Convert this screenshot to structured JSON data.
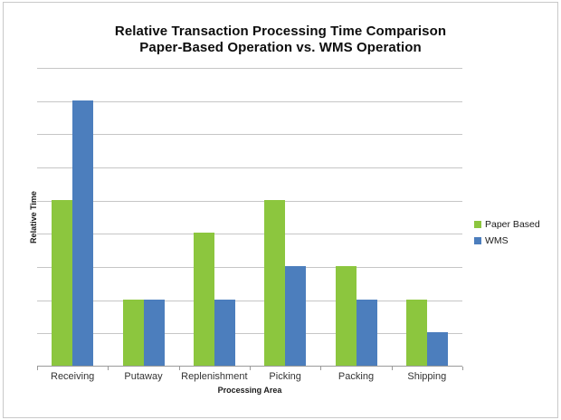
{
  "title": {
    "line1": "Relative Transaction Processing Time Comparison",
    "line2": "Paper-Based Operation vs. WMS Operation"
  },
  "chart_data": {
    "type": "bar",
    "title": "Relative Transaction Processing Time Comparison Paper-Based Operation vs. WMS Operation",
    "categories": [
      "Receiving",
      "Putaway",
      "Replenishment",
      "Picking",
      "Packing",
      "Shipping"
    ],
    "series": [
      {
        "name": "Paper Based",
        "color": "#8CC63E",
        "values": [
          5,
          2,
          4,
          5,
          3,
          2
        ]
      },
      {
        "name": "WMS",
        "color": "#4C7EBD",
        "values": [
          8,
          2,
          2,
          3,
          2,
          1
        ]
      }
    ],
    "xlabel": "Processing Area",
    "ylabel": "Relative Time",
    "ylim": [
      0,
      9
    ],
    "gridline_interval": 1,
    "grid": true,
    "y_tick_labels_visible": false,
    "legend_position": "right"
  },
  "colors": {
    "gridline": "#c6c6c6",
    "axis": "#9a9a9a",
    "frame_border": "#c9c9c9",
    "background": "#ffffff",
    "paper_based": "#8CC63E",
    "wms": "#4C7EBD"
  }
}
